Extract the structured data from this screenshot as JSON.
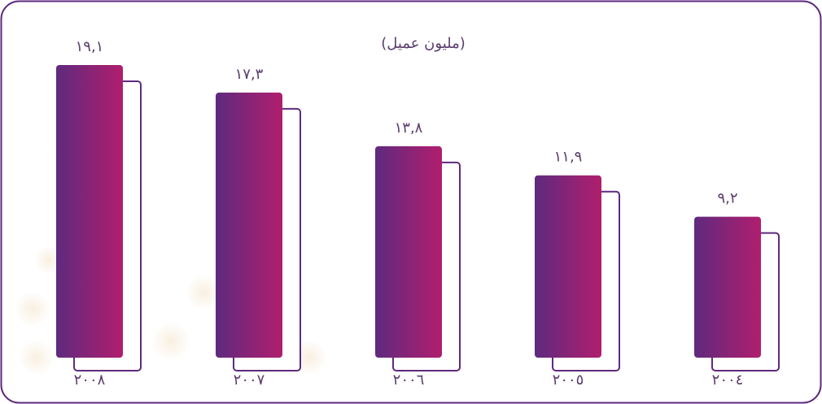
{
  "chart_data": {
    "type": "bar",
    "title": "(مليون عميل)",
    "categories": [
      "٢٠٠٨",
      "٢٠٠٧",
      "٢٠٠٦",
      "٢٠٠٥",
      "٢٠٠٤"
    ],
    "values": [
      19.1,
      17.3,
      13.8,
      11.9,
      9.2
    ],
    "value_labels": [
      "١٩,١",
      "١٧,٣",
      "١٣,٨",
      "١١,٩",
      "٩,٢"
    ],
    "color": "#5e2a7e"
  }
}
